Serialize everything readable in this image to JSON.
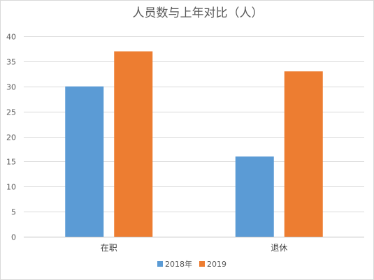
{
  "chart_data": {
    "type": "bar",
    "title": "人员数与上年对比（人）",
    "categories": [
      "在职",
      "退休"
    ],
    "series": [
      {
        "name": "2018年",
        "values": [
          30,
          16
        ],
        "color": "#5b9bd5"
      },
      {
        "name": "2019",
        "values": [
          37,
          33
        ],
        "color": "#ed7d31"
      }
    ],
    "y_ticks": [
      0,
      5,
      10,
      15,
      20,
      25,
      30,
      35,
      40
    ],
    "ylim": [
      0,
      40
    ],
    "grid": true,
    "legend_position": "bottom"
  }
}
